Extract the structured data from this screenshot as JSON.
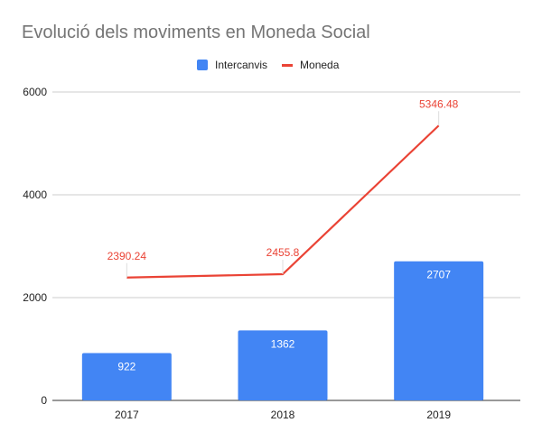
{
  "chart_data": {
    "type": "bar",
    "title": "Evolució dels moviments en Moneda Social",
    "xlabel": "",
    "ylabel": "",
    "categories": [
      "2017",
      "2018",
      "2019"
    ],
    "series": [
      {
        "name": "Intercanvis",
        "type": "bar",
        "color": "#4285f4",
        "values": [
          922,
          1362,
          2707
        ],
        "labels": [
          "922",
          "1362",
          "2707"
        ]
      },
      {
        "name": "Moneda",
        "type": "line",
        "color": "#ea4335",
        "values": [
          2390.24,
          2455.8,
          5346.48
        ],
        "labels": [
          "2390.24",
          "2455.8",
          "5346.48"
        ]
      }
    ],
    "ylim": [
      0,
      6000
    ],
    "yticks": [
      "0",
      "2000",
      "4000",
      "6000"
    ],
    "grid": true,
    "legend_position": "top"
  },
  "legend": {
    "bar_label": "Intercanvis",
    "line_label": "Moneda"
  }
}
